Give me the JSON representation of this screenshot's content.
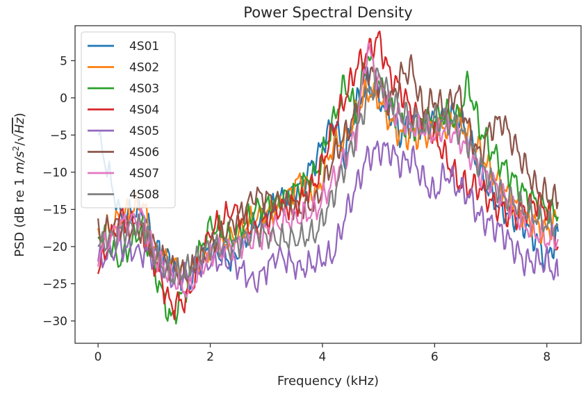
{
  "chart_data": {
    "type": "line",
    "title": "Power Spectral Density",
    "xlabel": "Frequency (kHz)",
    "ylabel": "PSD (dB re 1 m/s²/√Hz)",
    "ylabel_prefix": "PSD (dB re 1 ",
    "ylabel_unit": "m/s",
    "ylabel_sup": "2",
    "ylabel_sep": "/√",
    "ylabel_hz": "Hz",
    "ylabel_suffix": ")",
    "xlim": [
      -0.41,
      8.61
    ],
    "ylim": [
      -33.0,
      9.7
    ],
    "xticks": [
      0,
      2,
      4,
      6,
      8
    ],
    "xtick_labels": [
      "0",
      "2",
      "4",
      "6",
      "8"
    ],
    "yticks": [
      -30,
      -25,
      -20,
      -15,
      -10,
      -5,
      0,
      5
    ],
    "ytick_labels": [
      "−30",
      "−25",
      "−20",
      "−15",
      "−10",
      "−5",
      "0",
      "5"
    ],
    "legend_position": "top-left",
    "series": [
      {
        "name": "4S01",
        "color": "#1f77b4",
        "x": [
          0,
          0.4,
          0.8,
          1.0,
          1.3,
          1.6,
          2.0,
          2.4,
          2.8,
          3.2,
          3.6,
          3.9,
          4.2,
          4.4,
          4.6,
          4.8,
          5.0,
          5.2,
          5.4,
          5.6,
          5.8,
          6.0,
          6.2,
          6.4,
          6.6,
          6.8,
          7.0,
          7.2,
          7.4,
          7.6,
          7.8,
          8.0,
          8.2
        ],
        "y": [
          -5,
          -16,
          -15,
          -20,
          -22,
          -25,
          -20,
          -22,
          -17,
          -14,
          -12,
          -8,
          -3,
          -8,
          -1,
          2,
          0,
          -2,
          -5,
          -3,
          -4,
          -3,
          -3,
          -2,
          -5,
          -10,
          -13,
          -15,
          -16,
          -17,
          -19,
          -22,
          -18
        ]
      },
      {
        "name": "4S02",
        "color": "#ff7f0e",
        "x": [
          0,
          0.4,
          0.8,
          1.0,
          1.3,
          1.6,
          2.0,
          2.4,
          2.8,
          3.2,
          3.6,
          3.9,
          4.2,
          4.4,
          4.6,
          4.8,
          5.0,
          5.2,
          5.4,
          5.6,
          5.8,
          6.0,
          6.2,
          6.4,
          6.6,
          6.8,
          7.0,
          7.2,
          7.4,
          7.6,
          7.8,
          8.0,
          8.2
        ],
        "y": [
          -19,
          -16,
          -14,
          -21,
          -22,
          -24,
          -20,
          -19,
          -16,
          -15,
          -11,
          -13,
          -6,
          -6,
          -2,
          1,
          0,
          -3,
          -5,
          -5,
          -5,
          -4,
          -4,
          -3,
          -5,
          -7,
          -10,
          -12,
          -14,
          -16,
          -17,
          -18,
          -16
        ]
      },
      {
        "name": "4S03",
        "color": "#2ca02c",
        "x": [
          0,
          0.4,
          0.8,
          1.0,
          1.3,
          1.6,
          2.0,
          2.4,
          2.8,
          3.2,
          3.6,
          3.9,
          4.2,
          4.4,
          4.6,
          4.8,
          5.0,
          5.2,
          5.4,
          5.6,
          5.8,
          6.0,
          6.2,
          6.4,
          6.6,
          6.8,
          7.0,
          7.2,
          7.4,
          7.6,
          7.8,
          8.0,
          8.2
        ],
        "y": [
          -18,
          -22,
          -17,
          -23,
          -30,
          -25,
          -17,
          -19,
          -15,
          -14,
          -12,
          -10,
          -3,
          2,
          -2,
          6,
          2,
          -1,
          -3,
          -4,
          -3,
          -3,
          -2,
          -3,
          2,
          -4,
          -7,
          -9,
          -11,
          -13,
          -14,
          -15,
          -16
        ]
      },
      {
        "name": "4S04",
        "color": "#d62728",
        "x": [
          0,
          0.4,
          0.8,
          1.0,
          1.3,
          1.6,
          2.0,
          2.4,
          2.8,
          3.2,
          3.6,
          3.9,
          4.2,
          4.4,
          4.6,
          4.8,
          5.0,
          5.2,
          5.4,
          5.6,
          5.8,
          6.0,
          6.2,
          6.4,
          6.6,
          6.8,
          7.0,
          7.2,
          7.4,
          7.6,
          7.8,
          8.0,
          8.2
        ],
        "y": [
          -23,
          -16,
          -18,
          -22,
          -28,
          -27,
          -18,
          -15,
          -18,
          -15,
          -14,
          -11,
          -4,
          0,
          4,
          6,
          8,
          3,
          1,
          -2,
          -3,
          -5,
          -8,
          -11,
          -12,
          -12,
          -14,
          -15,
          -16,
          -15,
          -14,
          -15,
          -20
        ]
      },
      {
        "name": "4S05",
        "color": "#9467bd",
        "x": [
          0,
          0.4,
          0.8,
          1.0,
          1.3,
          1.6,
          2.0,
          2.4,
          2.8,
          3.2,
          3.6,
          3.9,
          4.2,
          4.4,
          4.6,
          4.8,
          5.0,
          5.2,
          5.4,
          5.6,
          5.8,
          6.0,
          6.2,
          6.4,
          6.6,
          6.8,
          7.0,
          7.2,
          7.4,
          7.6,
          7.8,
          8.0,
          8.2
        ],
        "y": [
          -22,
          -20,
          -21,
          -21,
          -24,
          -24,
          -22,
          -22,
          -25,
          -21,
          -23,
          -22,
          -21,
          -16,
          -12,
          -8,
          -7,
          -7,
          -9,
          -8,
          -11,
          -13,
          -10,
          -12,
          -13,
          -16,
          -17,
          -18,
          -20,
          -22,
          -22,
          -22,
          -24
        ]
      },
      {
        "name": "4S06",
        "color": "#8c564b",
        "x": [
          0,
          0.4,
          0.8,
          1.0,
          1.3,
          1.6,
          2.0,
          2.4,
          2.8,
          3.2,
          3.6,
          3.9,
          4.2,
          4.4,
          4.6,
          4.8,
          5.0,
          5.2,
          5.4,
          5.6,
          5.8,
          6.0,
          6.2,
          6.4,
          6.6,
          6.8,
          7.0,
          7.2,
          7.4,
          7.6,
          7.8,
          8.0,
          8.2
        ],
        "y": [
          -18,
          -17,
          -18,
          -20,
          -23,
          -24,
          -20,
          -17,
          -13,
          -14,
          -15,
          -14,
          -8,
          -5,
          -2,
          4,
          2,
          -1,
          3,
          4,
          -2,
          0,
          -2,
          1,
          -4,
          -8,
          -4,
          -3,
          -6,
          -9,
          -12,
          -13,
          -14
        ]
      },
      {
        "name": "4S07",
        "color": "#e377c2",
        "x": [
          0,
          0.4,
          0.8,
          1.0,
          1.3,
          1.6,
          2.0,
          2.4,
          2.8,
          3.2,
          3.6,
          3.9,
          4.2,
          4.4,
          4.6,
          4.8,
          5.0,
          5.2,
          5.4,
          5.6,
          5.8,
          6.0,
          6.2,
          6.4,
          6.6,
          6.8,
          7.0,
          7.2,
          7.4,
          7.6,
          7.8,
          8.0,
          8.2
        ],
        "y": [
          -21,
          -17,
          -16,
          -21,
          -24,
          -26,
          -21,
          -20,
          -19,
          -17,
          -16,
          -15,
          -11,
          -8,
          -5,
          7,
          2,
          -1,
          -3,
          -4,
          -4,
          -5,
          -4,
          -5,
          -7,
          -10,
          -11,
          -13,
          -15,
          -17,
          -18,
          -19,
          -19
        ]
      },
      {
        "name": "4S08",
        "color": "#7f7f7f",
        "x": [
          0,
          0.4,
          0.8,
          1.0,
          1.3,
          1.6,
          2.0,
          2.4,
          2.8,
          3.2,
          3.6,
          3.9,
          4.2,
          4.4,
          4.6,
          4.8,
          5.0,
          5.2,
          5.4,
          5.6,
          5.8,
          6.0,
          6.2,
          6.4,
          6.6,
          6.8,
          7.0,
          7.2,
          7.4,
          7.6,
          7.8,
          8.0,
          8.2
        ],
        "y": [
          -20,
          -18,
          -17,
          -21,
          -24,
          -23,
          -20,
          -20,
          -18,
          -19,
          -19,
          -18,
          -13,
          -9,
          -5,
          0,
          3,
          0,
          -2,
          -3,
          -4,
          -3,
          -3,
          -4,
          -6,
          -9,
          -11,
          -13,
          -14,
          -15,
          -16,
          -17,
          -17
        ]
      }
    ]
  }
}
